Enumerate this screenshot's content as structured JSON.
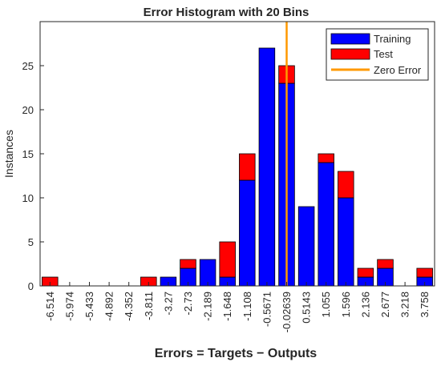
{
  "chart_data": {
    "type": "bar",
    "stacked": true,
    "title": "Error Histogram with 20 Bins",
    "xlabel": "Errors = Targets − Outputs",
    "ylabel": "Instances",
    "ylim": [
      0,
      30
    ],
    "yticks": [
      0,
      5,
      10,
      15,
      20,
      25
    ],
    "categories": [
      "-6.514",
      "-5.974",
      "-5.433",
      "-4.892",
      "-4.352",
      "-3.811",
      "-3.27",
      "-2.73",
      "-2.189",
      "-1.648",
      "-1.108",
      "-0.5671",
      "-0.02639",
      "0.5143",
      "1.055",
      "1.596",
      "2.136",
      "2.677",
      "3.218",
      "3.758"
    ],
    "series": [
      {
        "name": "Training",
        "color": "#0000ff",
        "values": [
          0,
          0,
          0,
          0,
          0,
          0,
          1,
          2,
          3,
          1,
          12,
          27,
          23,
          9,
          14,
          10,
          1,
          2,
          0,
          1
        ]
      },
      {
        "name": "Test",
        "color": "#ff0000",
        "values": [
          1,
          0,
          0,
          0,
          0,
          1,
          0,
          1,
          0,
          4,
          3,
          0,
          2,
          0,
          1,
          3,
          1,
          1,
          0,
          1
        ]
      }
    ],
    "zero_error": {
      "name": "Zero Error",
      "color": "#ff9900",
      "x_category": "-0.02639"
    },
    "legend_position": "top-right",
    "grid": false
  }
}
